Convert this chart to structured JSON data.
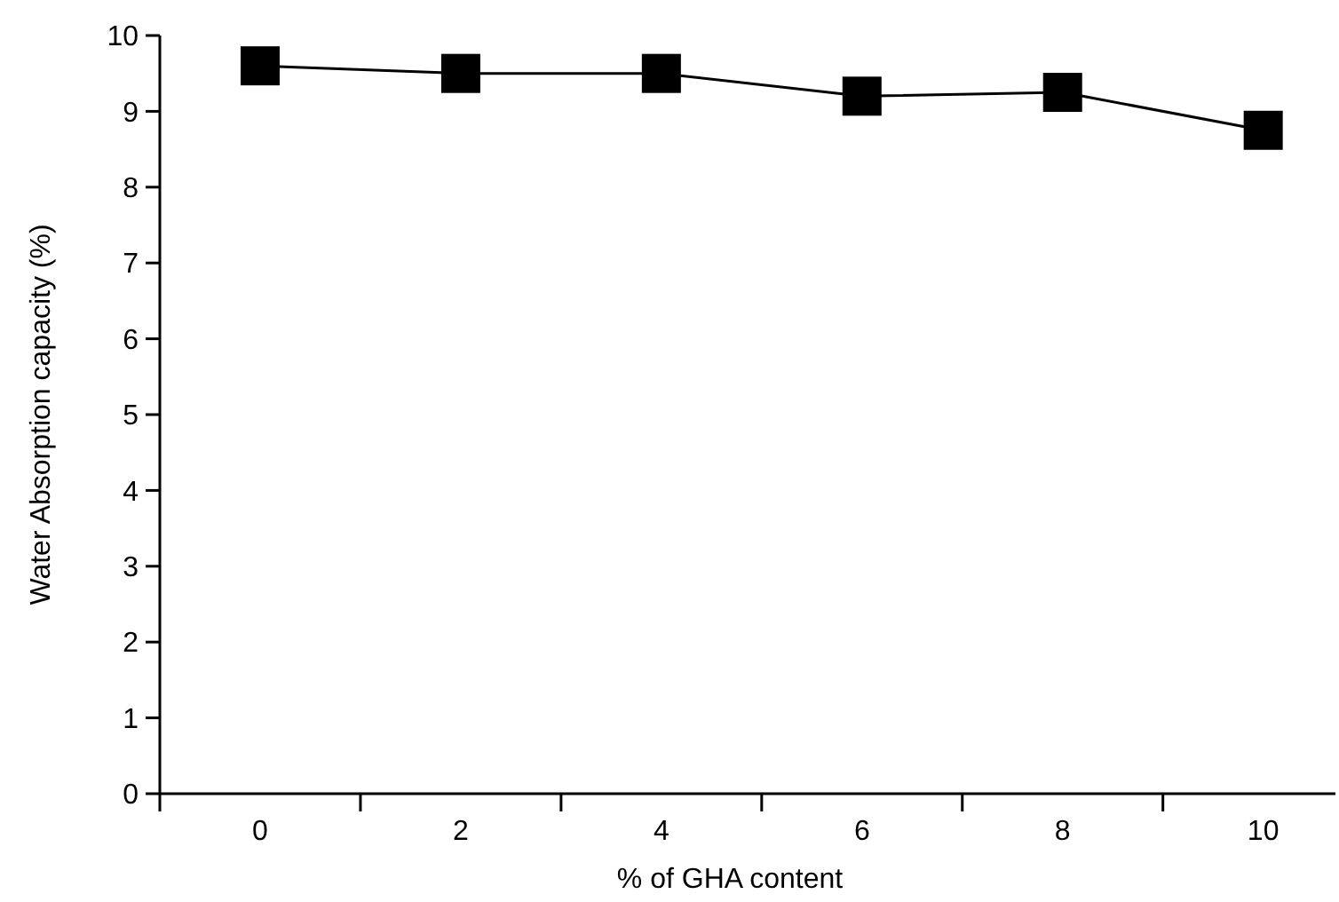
{
  "chart_data": {
    "type": "line",
    "xlabel": "% of  GHA content",
    "ylabel": "Water Absorption capacity (%)",
    "categories": [
      "0",
      "2",
      "4",
      "6",
      "8",
      "10"
    ],
    "values": [
      9.6,
      9.5,
      9.5,
      9.2,
      9.25,
      8.75
    ],
    "color": "#000000",
    "marker": "square",
    "line_style": "solid",
    "ylim": [
      0,
      10
    ],
    "yticks": [
      0,
      1,
      2,
      3,
      4,
      5,
      6,
      7,
      8,
      9,
      10
    ]
  }
}
